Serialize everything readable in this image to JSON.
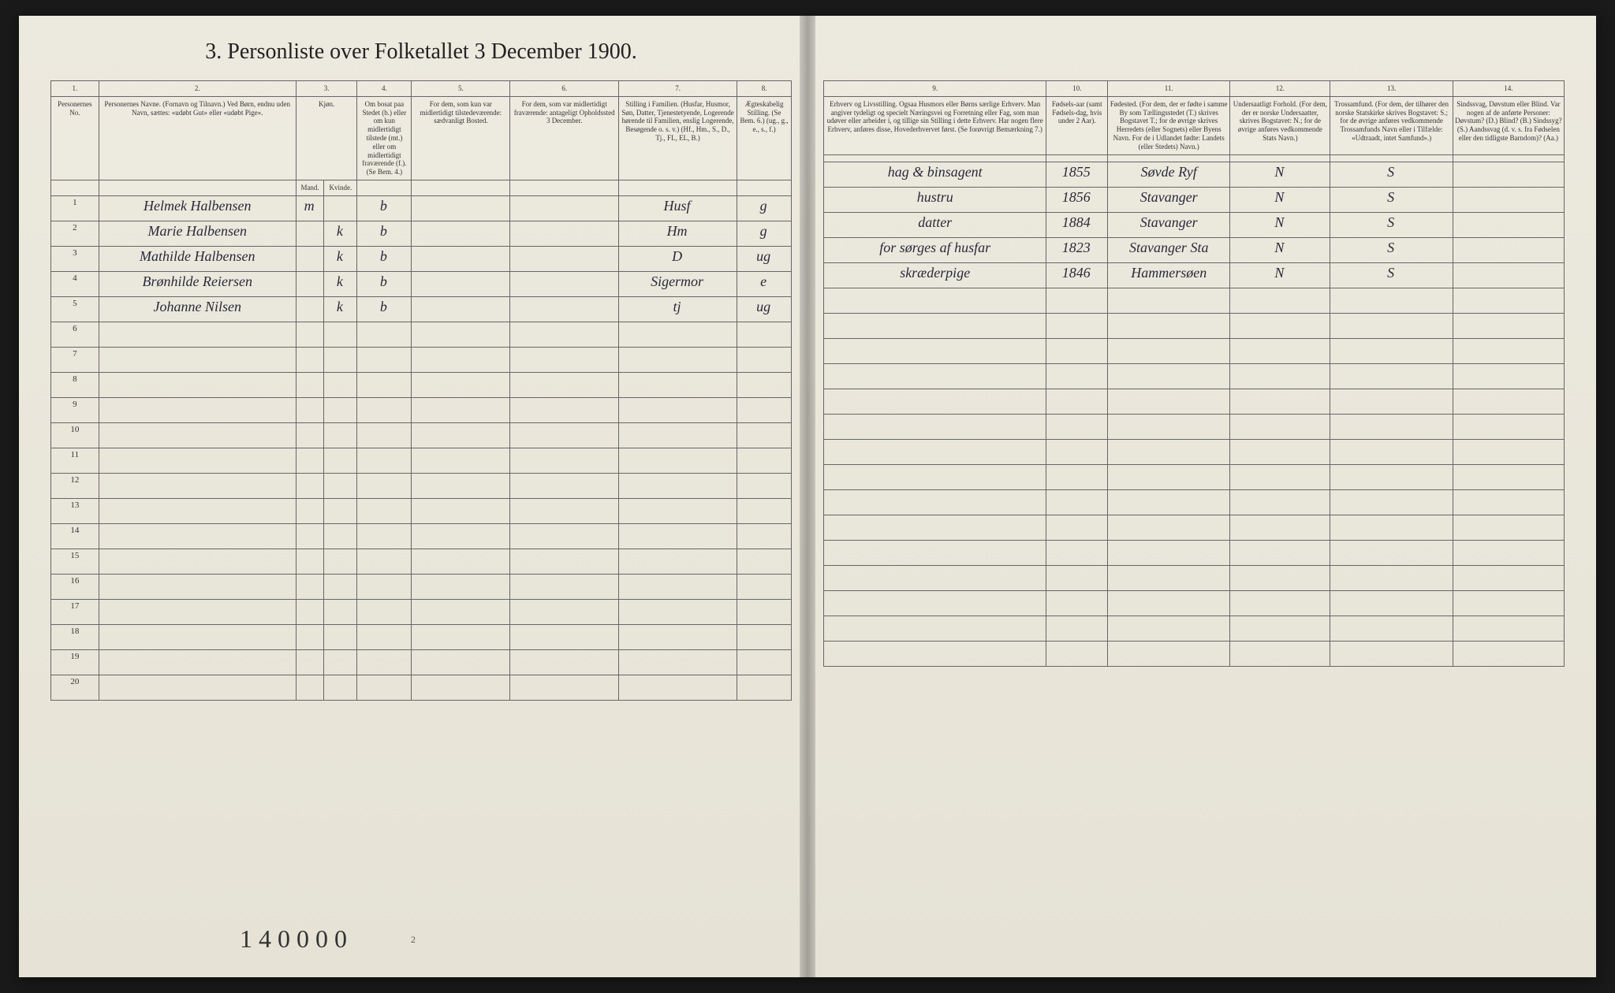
{
  "title": "3. Personliste over Folketallet 3 December 1900.",
  "page_number": "2",
  "bottom_annotation": "1 4 0 0    0 0",
  "colors": {
    "paper": "#e8e6dc",
    "ink": "#2a2a3a",
    "border": "#666666",
    "background": "#1a1a1a"
  },
  "column_numbers": [
    "1.",
    "2.",
    "3.",
    "4.",
    "5.",
    "6.",
    "7.",
    "8.",
    "9.",
    "10.",
    "11.",
    "12.",
    "13.",
    "14."
  ],
  "headers": {
    "col1": "Personernes No.",
    "col2": "Personernes Navne.\n(Fornavn og Tilnavn.)\nVed Børn, endnu uden Navn, sættes: «udøbt Gut» eller «udøbt Pige».",
    "col3": "Kjøn.",
    "col3a": "Mand.",
    "col3b": "Kvinde.",
    "col4": "Om bosat paa Stedet (b.) eller om kun midlertidigt tilstede (mt.) eller om midlertidigt fraværende (f.). (Se Bem. 4.)",
    "col5": "For dem, som kun var midlertidigt tilstedeværende: sædvanligt Bosted.",
    "col6": "For dem, som var midlertidigt fraværende: antageligt Opholdssted 3 December.",
    "col7": "Stilling i Familien.\n(Husfar, Husmor, Søn, Datter, Tjenestetyende, Logerende hørende til Familien, enslig Logerende, Besøgende o. s. v.)\n(Hf., Hm., S., D., Tj., FL, EL, B.)",
    "col8": "Ægteskabelig Stilling.\n(Se Bem. 6.)\n(ug., g., e., s., f.)",
    "col9": "Erhverv og Livsstilling.\nOgsaa Husmors eller Børns særlige Erhverv. Man angiver tydeligt og specielt Næringsvei og Forretning eller Fag, som man udøver eller arbeider i, og tillige sin Stilling i dette Erhverv. Har nogen flere Erhverv, anføres disse, Hovederhvervet først.\n(Se forøvrigt Bemærkning 7.)",
    "col10": "Fødsels-aar\n(samt Fødsels-dag, hvis under 2 Aar).",
    "col11": "Fødested.\n(For dem, der er fødte i samme By som Tællingsstedet (T.) skrives Bogstavet T.; for de øvrige skrives Herredets (eller Sognets) eller Byens Navn. For de i Udlandet fødte: Landets (eller Stedets) Navn.)",
    "col12": "Undersaatligt Forhold.\n(For dem, der er norske Undersaatter, skrives Bogstavet: N.; for de øvrige anføres vedkommende Stats Navn.)",
    "col13": "Trossamfund.\n(For dem, der tilhører den norske Statskirke skrives Bogstavet: S.; for de øvrige anføres vedkommende Trossamfunds Navn eller i Tilfælde: «Udtraadt, intet Samfund».)",
    "col14": "Sindssvag, Døvstum eller Blind.\nVar nogen af de anførte Personer:\nDøvstum? (D.)\nBlind? (B.)\nSindssyg? (S.)\nAandssvag (d. v. s. fra Fødselen eller den tidligste Barndom)? (Aa.)"
  },
  "rows": [
    {
      "num": "1",
      "name": "Helmek Halbensen",
      "sex_m": "m",
      "sex_k": "",
      "residence": "b",
      "temp": "",
      "absent": "",
      "position": "Husf",
      "marital": "g",
      "occupation": "hag & binsagent",
      "birth": "1855",
      "birthplace": "Søvde Ryf",
      "nationality": "N",
      "religion": "S",
      "disability": ""
    },
    {
      "num": "2",
      "name": "Marie Halbensen",
      "sex_m": "",
      "sex_k": "k",
      "residence": "b",
      "temp": "",
      "absent": "",
      "position": "Hm",
      "marital": "g",
      "occupation": "hustru",
      "birth": "1856",
      "birthplace": "Stavanger",
      "nationality": "N",
      "religion": "S",
      "disability": ""
    },
    {
      "num": "3",
      "name": "Mathilde Halbensen",
      "sex_m": "",
      "sex_k": "k",
      "residence": "b",
      "temp": "",
      "absent": "",
      "position": "D",
      "marital": "ug",
      "occupation": "datter",
      "birth": "1884",
      "birthplace": "Stavanger",
      "nationality": "N",
      "religion": "S",
      "disability": ""
    },
    {
      "num": "4",
      "name": "Brønhilde Reiersen",
      "sex_m": "",
      "sex_k": "k",
      "residence": "b",
      "temp": "",
      "absent": "",
      "position": "Sigermor",
      "marital": "e",
      "occupation": "for sørges af husfar",
      "birth": "1823",
      "birthplace": "Stavanger Sta",
      "nationality": "N",
      "religion": "S",
      "disability": ""
    },
    {
      "num": "5",
      "name": "Johanne Nilsen",
      "sex_m": "",
      "sex_k": "k",
      "residence": "b",
      "temp": "",
      "absent": "",
      "position": "tj",
      "marital": "ug",
      "occupation": "skræderpige",
      "birth": "1846",
      "birthplace": "Hammersøen",
      "nationality": "N",
      "religion": "S",
      "disability": ""
    }
  ],
  "empty_rows": [
    "6",
    "7",
    "8",
    "9",
    "10",
    "11",
    "12",
    "13",
    "14",
    "15",
    "16",
    "17",
    "18",
    "19",
    "20"
  ]
}
